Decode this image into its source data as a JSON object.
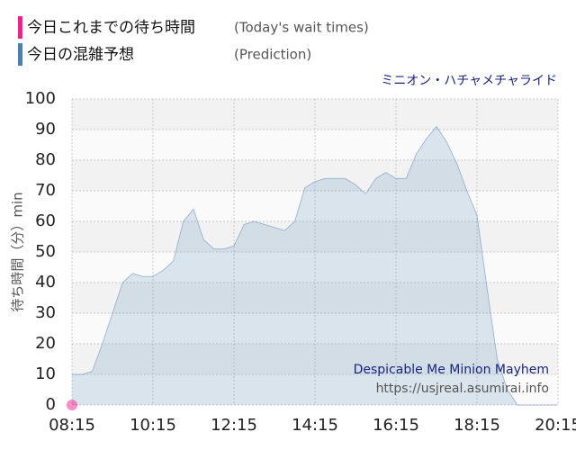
{
  "chart_data": {
    "type": "area",
    "attraction": "ミニオン・ハチャメチャライド",
    "y_label": "待ち時間（分）min",
    "watermark": "Despicable Me Minion Mayhem",
    "source": "https://usjreal.asumirai.info",
    "categories": [
      "08:15",
      null,
      null,
      null,
      null,
      null,
      null,
      null,
      "10:15",
      null,
      null,
      null,
      null,
      null,
      null,
      null,
      "12:15",
      null,
      null,
      null,
      null,
      null,
      null,
      null,
      "14:15",
      null,
      null,
      null,
      null,
      null,
      null,
      null,
      "16:15",
      null,
      null,
      null,
      null,
      null,
      null,
      null,
      "18:15",
      null,
      null,
      null,
      null,
      null,
      null,
      null,
      "20:15"
    ],
    "series": [
      {
        "name": "今日の混雑予想",
        "note": "(Prediction)",
        "color": "#4a7fb0",
        "values": [
          10,
          10,
          11,
          20,
          30,
          40,
          43,
          42,
          42,
          44,
          47,
          60,
          64,
          54,
          51,
          51,
          52,
          59,
          60,
          59,
          58,
          57,
          60,
          71,
          73,
          74,
          74,
          74,
          72,
          69,
          74,
          76,
          74,
          74,
          82,
          87,
          91,
          86,
          79,
          70,
          62,
          38,
          15,
          5,
          0,
          0,
          0,
          0,
          0
        ]
      },
      {
        "name": "今日これまでの待ち時間",
        "note": "(Today's wait times)",
        "color": "#f0208c",
        "values": [
          0,
          null,
          null,
          null,
          null,
          null,
          null,
          null,
          null,
          null,
          null,
          null,
          null,
          null,
          null,
          null,
          null,
          null,
          null,
          null,
          null,
          null,
          null,
          null,
          null,
          null,
          null,
          null,
          null,
          null,
          null,
          null,
          null,
          null,
          null,
          null,
          null,
          null,
          null,
          null,
          null,
          null,
          null,
          null,
          null,
          null,
          null,
          null,
          null
        ]
      }
    ],
    "ylim": [
      0,
      100
    ],
    "yticks": [
      0,
      10,
      20,
      30,
      40,
      50,
      60,
      70,
      80,
      90,
      100
    ],
    "grid": true
  }
}
